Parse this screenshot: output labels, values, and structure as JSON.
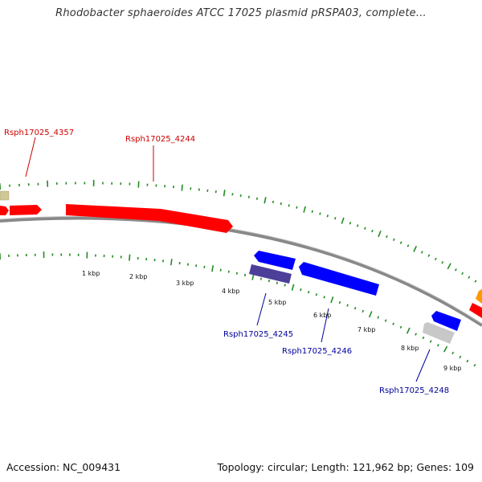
{
  "title": "Rhodobacter sphaeroides ATCC 17025 plasmid pRSPA03, complete...",
  "footer": {
    "accession": "Accession: NC_009431",
    "topology": "Topology: circular; Length: 121,962 bp; Genes: 109"
  },
  "colors": {
    "forward_gene": "#ff0000",
    "reverse_gene": "#0000ff",
    "forward_label": "#cc0000",
    "reverse_label": "#000099",
    "backbone": "#888888",
    "tick": "#228b22",
    "gene_khaki": "#cfc897",
    "gene_purple": "#4b3f9a",
    "gene_gray": "#c8c8c8",
    "gene_orange": "#ff9900"
  },
  "scale_labels": [
    "1 kbp",
    "2 kbp",
    "3 kbp",
    "4 kbp",
    "5 kbp",
    "6 kbp",
    "7 kbp",
    "8 kbp",
    "9 kbp"
  ],
  "gene_labels": {
    "rsph4357": "Rsph17025_4357",
    "rsph4244": "Rsph17025_4244",
    "rsph4245": "Rsph17025_4245",
    "rsph4246": "Rsph17025_4246",
    "rsph4248": "Rsph17025_4248"
  }
}
